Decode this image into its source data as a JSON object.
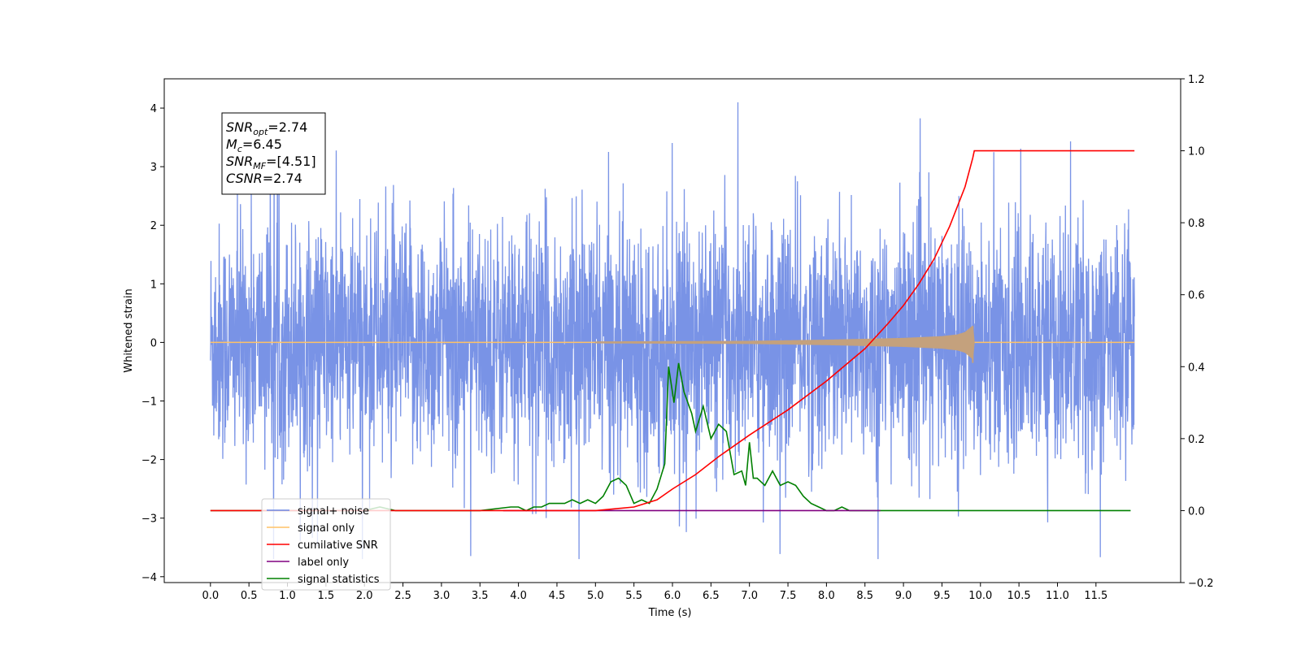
{
  "chart_data": {
    "type": "line",
    "xlabel": "Time (s)",
    "ylabel": "Whitened strain",
    "ylabel_right": "",
    "xlim": [
      -0.6,
      12.6
    ],
    "ylim": [
      -4.1,
      4.5
    ],
    "ylim_right": [
      -0.2,
      1.2
    ],
    "x_ticks": [
      "0.0",
      "0.5",
      "1.0",
      "1.5",
      "2.0",
      "2.5",
      "3.0",
      "3.5",
      "4.0",
      "4.5",
      "5.0",
      "5.5",
      "6.0",
      "6.5",
      "7.0",
      "7.5",
      "8.0",
      "8.5",
      "9.0",
      "9.5",
      "10.0",
      "10.5",
      "11.0",
      "11.5"
    ],
    "y_ticks_left": [
      "4",
      "3",
      "2",
      "1",
      "0",
      "−1",
      "−2",
      "−3",
      "−4"
    ],
    "y_ticks_right": [
      "1.2",
      "1.0",
      "0.8",
      "0.6",
      "0.4",
      "0.2",
      "0.0",
      "−0.2"
    ],
    "grid": false,
    "annotation": {
      "lines": [
        {
          "base": "SNR",
          "sub": "opt",
          "rest": "=2.74"
        },
        {
          "base": "M",
          "sub": "c",
          "rest": "=6.45"
        },
        {
          "base": "SNR",
          "sub": "MF",
          "rest": "=[4.51]"
        },
        {
          "base": "CSNR",
          "sub": "",
          "rest": "=2.74"
        }
      ]
    },
    "legend": {
      "placement": "bottom-left",
      "entries": [
        {
          "label": "signal+ noise",
          "color": "#6a87e3"
        },
        {
          "label": "signal only",
          "color": "#ffc266"
        },
        {
          "label": "cumilative SNR",
          "color": "#ff0000"
        },
        {
          "label": "label only",
          "color": "#800080"
        },
        {
          "label": "signal statistics",
          "color": "#008000"
        }
      ]
    },
    "series": [
      {
        "name": "signal+ noise",
        "axis": "left",
        "color": "#6a87e3",
        "description_values": {
          "t_start": 0.0,
          "t_end": 12.0,
          "mean": 0.0,
          "approx_range": [
            -3.7,
            4.1
          ]
        }
      },
      {
        "name": "signal only",
        "axis": "left",
        "color": "#ffc266",
        "envelope": {
          "x": [
            0.0,
            5.0,
            7.0,
            8.0,
            9.0,
            9.5,
            9.7,
            9.8,
            9.9,
            9.92,
            12.0
          ],
          "amp": [
            0.0,
            0.01,
            0.02,
            0.04,
            0.07,
            0.1,
            0.13,
            0.17,
            0.28,
            0.0,
            0.0
          ]
        }
      },
      {
        "name": "cumilative SNR",
        "axis": "right",
        "color": "#ff0000",
        "x": [
          0.0,
          5.0,
          5.5,
          5.8,
          6.0,
          6.3,
          6.6,
          7.0,
          7.5,
          8.0,
          8.5,
          8.8,
          9.0,
          9.2,
          9.4,
          9.6,
          9.8,
          9.9,
          9.92,
          12.0
        ],
        "y": [
          0.0,
          0.0,
          0.01,
          0.03,
          0.06,
          0.1,
          0.15,
          0.21,
          0.28,
          0.36,
          0.45,
          0.52,
          0.57,
          0.63,
          0.7,
          0.79,
          0.9,
          0.98,
          1.0,
          1.0
        ]
      },
      {
        "name": "label only",
        "axis": "right",
        "color": "#800080",
        "x": [
          3.8,
          8.7
        ],
        "y": [
          0.0,
          0.0
        ]
      },
      {
        "name": "signal statistics",
        "axis": "right",
        "color": "#008000",
        "x": [
          0.0,
          2.0,
          2.2,
          2.4,
          2.6,
          3.5,
          3.9,
          4.0,
          4.1,
          4.2,
          4.3,
          4.4,
          4.5,
          4.6,
          4.7,
          4.8,
          4.9,
          5.0,
          5.1,
          5.2,
          5.3,
          5.4,
          5.5,
          5.6,
          5.7,
          5.8,
          5.9,
          5.95,
          6.02,
          6.08,
          6.15,
          6.25,
          6.3,
          6.4,
          6.5,
          6.6,
          6.7,
          6.8,
          6.9,
          6.95,
          7.0,
          7.05,
          7.1,
          7.2,
          7.3,
          7.4,
          7.5,
          7.6,
          7.7,
          7.8,
          7.9,
          8.0,
          8.1,
          8.2,
          8.3,
          8.4,
          8.5,
          8.6,
          8.7,
          8.8,
          9.0,
          10.0,
          11.0,
          11.95
        ],
        "y": [
          0.0,
          0.0,
          0.01,
          0.0,
          0.0,
          0.0,
          0.01,
          0.01,
          0.0,
          0.01,
          0.01,
          0.02,
          0.02,
          0.02,
          0.03,
          0.02,
          0.03,
          0.02,
          0.04,
          0.08,
          0.09,
          0.07,
          0.02,
          0.03,
          0.02,
          0.06,
          0.13,
          0.4,
          0.3,
          0.41,
          0.33,
          0.27,
          0.22,
          0.29,
          0.2,
          0.24,
          0.22,
          0.1,
          0.11,
          0.07,
          0.19,
          0.09,
          0.09,
          0.07,
          0.11,
          0.07,
          0.08,
          0.07,
          0.04,
          0.02,
          0.01,
          0.0,
          0.0,
          0.01,
          0.0,
          0.0,
          0.0,
          0.0,
          0.0,
          0.0,
          0.0,
          0.0,
          0.0,
          0.0
        ]
      }
    ]
  }
}
